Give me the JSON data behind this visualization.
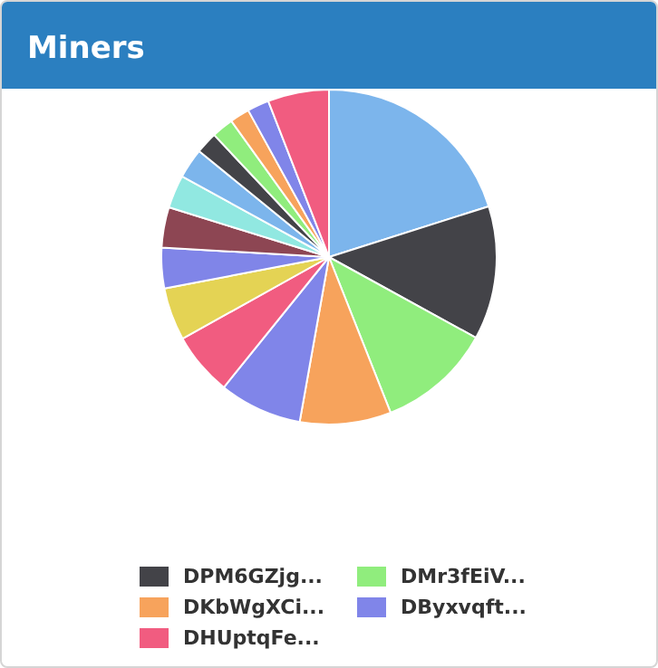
{
  "chart_data": {
    "type": "pie",
    "title": "Miners",
    "legend": "bottom",
    "categories": [
      null,
      "DPM6GZjg...",
      "DMr3fEiV...",
      "DKbWgXCi...",
      "DByxvqft...",
      "DHUptqFe...",
      null,
      null,
      null,
      null,
      null,
      null,
      null,
      null,
      null,
      null
    ],
    "values": [
      20.1,
      12.9,
      11,
      8.8,
      8,
      6.1,
      5.1,
      3.9,
      3.9,
      3.2,
      2.9,
      2.1,
      2.1,
      1.9,
      2.1,
      5.9
    ],
    "colors": [
      "#7cb5ec",
      "#434348",
      "#90ed7d",
      "#f7a35c",
      "#8085e9",
      "#f15c80",
      "#e4d354",
      "#8085e8",
      "#8d4653",
      "#91e8e1",
      "#7cb5ec",
      "#434348",
      "#90ed7d",
      "#f7a35c",
      "#8085e9",
      "#f15c80"
    ]
  }
}
